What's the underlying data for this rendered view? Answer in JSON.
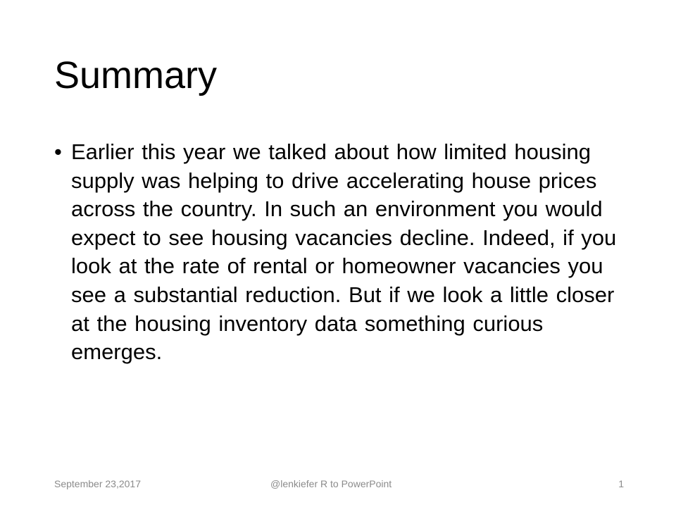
{
  "slide": {
    "title": "Summary",
    "bullets": [
      {
        "marker": "•",
        "text": "Earlier this year we talked about how limited housing supply was helping to drive accelerating house prices across the country. In such an environment you would expect to see housing vacancies decline. Indeed, if you look at the rate of rental or homeowner vacancies you see a substantial reduction. But if we look a little closer at the housing inventory data something curious emerges."
      }
    ],
    "footer": {
      "date": "September 23,2017",
      "center": "@lenkiefer R to PowerPoint",
      "page_number": "1"
    }
  }
}
